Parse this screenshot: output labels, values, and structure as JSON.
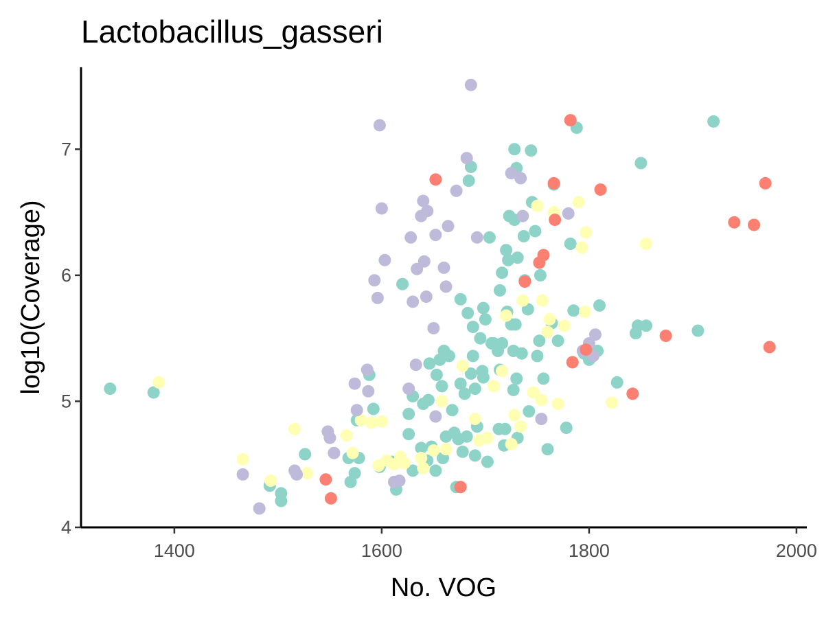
{
  "chart_data": {
    "type": "scatter",
    "title": "Lactobacillus_gasseri",
    "xlabel": "No. VOG",
    "ylabel": "log10(Coverage)",
    "xlim": [
      1310,
      2010
    ],
    "ylim": [
      4.0,
      7.65
    ],
    "xticks": [
      1400,
      1600,
      1800,
      2000
    ],
    "yticks": [
      4,
      5,
      6,
      7
    ],
    "grid": false,
    "legend": "none",
    "series": [
      {
        "color": "#8DD3C7",
        "points": [
          [
            1338,
            5.1
          ],
          [
            1380,
            5.07
          ],
          [
            1492,
            4.33
          ],
          [
            1503,
            4.27
          ],
          [
            1503,
            4.21
          ],
          [
            1526,
            4.58
          ],
          [
            1568,
            4.55
          ],
          [
            1570,
            4.36
          ],
          [
            1574,
            4.43
          ],
          [
            1576,
            4.85
          ],
          [
            1578,
            4.55
          ],
          [
            1588,
            5.21
          ],
          [
            1592,
            4.94
          ],
          [
            1598,
            4.48
          ],
          [
            1610,
            4.52
          ],
          [
            1614,
            4.3
          ],
          [
            1620,
            5.93
          ],
          [
            1626,
            4.74
          ],
          [
            1626,
            4.9
          ],
          [
            1630,
            4.45
          ],
          [
            1630,
            5.04
          ],
          [
            1638,
            4.63
          ],
          [
            1640,
            4.98
          ],
          [
            1644,
            4.53
          ],
          [
            1645,
            5.01
          ],
          [
            1646,
            5.3
          ],
          [
            1648,
            4.64
          ],
          [
            1652,
            4.45
          ],
          [
            1653,
            5.21
          ],
          [
            1656,
            5.33
          ],
          [
            1658,
            5.12
          ],
          [
            1659,
            4.55
          ],
          [
            1660,
            5.4
          ],
          [
            1662,
            4.72
          ],
          [
            1665,
            5.36
          ],
          [
            1668,
            4.93
          ],
          [
            1670,
            4.75
          ],
          [
            1672,
            4.32
          ],
          [
            1674,
            4.7
          ],
          [
            1676,
            5.14
          ],
          [
            1676,
            5.81
          ],
          [
            1678,
            4.6
          ],
          [
            1680,
            5.06
          ],
          [
            1682,
            4.72
          ],
          [
            1683,
            5.7
          ],
          [
            1684,
            6.75
          ],
          [
            1686,
            6.86
          ],
          [
            1686,
            5.22
          ],
          [
            1688,
            5.59
          ],
          [
            1688,
            5.36
          ],
          [
            1690,
            5.1
          ],
          [
            1690,
            4.57
          ],
          [
            1692,
            4.8
          ],
          [
            1695,
            5.5
          ],
          [
            1697,
            5.24
          ],
          [
            1698,
            5.19
          ],
          [
            1698,
            5.74
          ],
          [
            1700,
            5.65
          ],
          [
            1702,
            4.52
          ],
          [
            1704,
            6.3
          ],
          [
            1706,
            5.46
          ],
          [
            1708,
            5.46
          ],
          [
            1712,
            5.4
          ],
          [
            1713,
            4.78
          ],
          [
            1714,
            5.25
          ],
          [
            1714,
            5.88
          ],
          [
            1716,
            6.02
          ],
          [
            1716,
            5.46
          ],
          [
            1718,
            4.65
          ],
          [
            1719,
            4.78
          ],
          [
            1720,
            6.2
          ],
          [
            1721,
            5.71
          ],
          [
            1722,
            6.12
          ],
          [
            1723,
            6.47
          ],
          [
            1725,
            5.61
          ],
          [
            1727,
            5.4
          ],
          [
            1727,
            5.09
          ],
          [
            1728,
            6.44
          ],
          [
            1728,
            7.0
          ],
          [
            1729,
            5.61
          ],
          [
            1730,
            6.85
          ],
          [
            1730,
            5.18
          ],
          [
            1731,
            6.14
          ],
          [
            1731,
            4.71
          ],
          [
            1735,
            5.38
          ],
          [
            1737,
            6.31
          ],
          [
            1738,
            5.96
          ],
          [
            1741,
            5.73
          ],
          [
            1742,
            4.92
          ],
          [
            1744,
            6.99
          ],
          [
            1745,
            6.58
          ],
          [
            1748,
            6.35
          ],
          [
            1750,
            5.36
          ],
          [
            1752,
            5.48
          ],
          [
            1753,
            6.0
          ],
          [
            1756,
            5.18
          ],
          [
            1760,
            4.62
          ],
          [
            1764,
            5.62
          ],
          [
            1766,
            6.72
          ],
          [
            1770,
            5.48
          ],
          [
            1778,
            4.79
          ],
          [
            1782,
            6.25
          ],
          [
            1785,
            5.72
          ],
          [
            1788,
            7.17
          ],
          [
            1795,
            5.38
          ],
          [
            1800,
            5.33
          ],
          [
            1808,
            5.4
          ],
          [
            1810,
            5.76
          ],
          [
            1827,
            5.15
          ],
          [
            1845,
            5.54
          ],
          [
            1847,
            5.6
          ],
          [
            1850,
            6.89
          ],
          [
            1855,
            5.6
          ],
          [
            1905,
            5.56
          ],
          [
            1920,
            7.22
          ]
        ]
      },
      {
        "color": "#FFFFB3",
        "points": [
          [
            1385,
            5.15
          ],
          [
            1466,
            4.54
          ],
          [
            1493,
            4.37
          ],
          [
            1516,
            4.78
          ],
          [
            1528,
            4.43
          ],
          [
            1566,
            4.73
          ],
          [
            1572,
            4.59
          ],
          [
            1580,
            4.85
          ],
          [
            1590,
            4.83
          ],
          [
            1597,
            4.49
          ],
          [
            1600,
            4.84
          ],
          [
            1605,
            4.53
          ],
          [
            1612,
            4.5
          ],
          [
            1618,
            4.56
          ],
          [
            1622,
            4.51
          ],
          [
            1638,
            4.55
          ],
          [
            1640,
            4.47
          ],
          [
            1650,
            4.61
          ],
          [
            1658,
            5.0
          ],
          [
            1662,
            4.62
          ],
          [
            1678,
            5.28
          ],
          [
            1690,
            4.86
          ],
          [
            1694,
            4.69
          ],
          [
            1702,
            4.71
          ],
          [
            1708,
            5.12
          ],
          [
            1716,
            5.24
          ],
          [
            1720,
            5.68
          ],
          [
            1725,
            4.66
          ],
          [
            1728,
            4.89
          ],
          [
            1734,
            4.8
          ],
          [
            1736,
            5.8
          ],
          [
            1746,
            5.07
          ],
          [
            1750,
            6.55
          ],
          [
            1754,
            5.01
          ],
          [
            1755,
            5.8
          ],
          [
            1760,
            5.55
          ],
          [
            1762,
            5.65
          ],
          [
            1766,
            6.5
          ],
          [
            1770,
            4.98
          ],
          [
            1776,
            5.6
          ],
          [
            1790,
            6.58
          ],
          [
            1793,
            6.22
          ],
          [
            1796,
            5.71
          ],
          [
            1797,
            6.34
          ],
          [
            1822,
            4.99
          ],
          [
            1855,
            6.25
          ]
        ]
      },
      {
        "color": "#BEBADA",
        "points": [
          [
            1466,
            4.42
          ],
          [
            1482,
            4.15
          ],
          [
            1516,
            4.45
          ],
          [
            1518,
            4.42
          ],
          [
            1548,
            4.76
          ],
          [
            1550,
            4.71
          ],
          [
            1554,
            4.59
          ],
          [
            1574,
            5.14
          ],
          [
            1576,
            4.93
          ],
          [
            1586,
            5.25
          ],
          [
            1587,
            5.08
          ],
          [
            1593,
            5.96
          ],
          [
            1596,
            5.82
          ],
          [
            1598,
            7.19
          ],
          [
            1600,
            6.53
          ],
          [
            1603,
            6.12
          ],
          [
            1612,
            4.36
          ],
          [
            1617,
            4.37
          ],
          [
            1626,
            5.1
          ],
          [
            1628,
            6.3
          ],
          [
            1630,
            5.79
          ],
          [
            1633,
            5.29
          ],
          [
            1634,
            6.05
          ],
          [
            1638,
            6.47
          ],
          [
            1640,
            6.59
          ],
          [
            1641,
            6.11
          ],
          [
            1643,
            5.83
          ],
          [
            1644,
            6.51
          ],
          [
            1650,
            5.58
          ],
          [
            1652,
            4.88
          ],
          [
            1652,
            6.32
          ],
          [
            1660,
            6.06
          ],
          [
            1662,
            5.91
          ],
          [
            1664,
            6.39
          ],
          [
            1672,
            6.67
          ],
          [
            1682,
            6.93
          ],
          [
            1686,
            7.51
          ],
          [
            1692,
            6.3
          ],
          [
            1725,
            6.81
          ],
          [
            1734,
            6.77
          ],
          [
            1736,
            6.47
          ],
          [
            1754,
            4.86
          ],
          [
            1780,
            6.49
          ],
          [
            1794,
            5.4
          ],
          [
            1800,
            5.46
          ],
          [
            1804,
            5.36
          ],
          [
            1806,
            5.53
          ]
        ]
      },
      {
        "color": "#FB8072",
        "points": [
          [
            1546,
            4.38
          ],
          [
            1551,
            4.23
          ],
          [
            1652,
            6.76
          ],
          [
            1676,
            4.32
          ],
          [
            1738,
            5.95
          ],
          [
            1752,
            6.1
          ],
          [
            1756,
            6.16
          ],
          [
            1766,
            6.73
          ],
          [
            1767,
            6.44
          ],
          [
            1782,
            7.23
          ],
          [
            1784,
            5.31
          ],
          [
            1797,
            5.41
          ],
          [
            1811,
            6.68
          ],
          [
            1842,
            5.06
          ],
          [
            1874,
            5.52
          ],
          [
            1940,
            6.42
          ],
          [
            1959,
            6.4
          ],
          [
            1970,
            6.73
          ],
          [
            1974,
            5.43
          ]
        ]
      }
    ]
  }
}
